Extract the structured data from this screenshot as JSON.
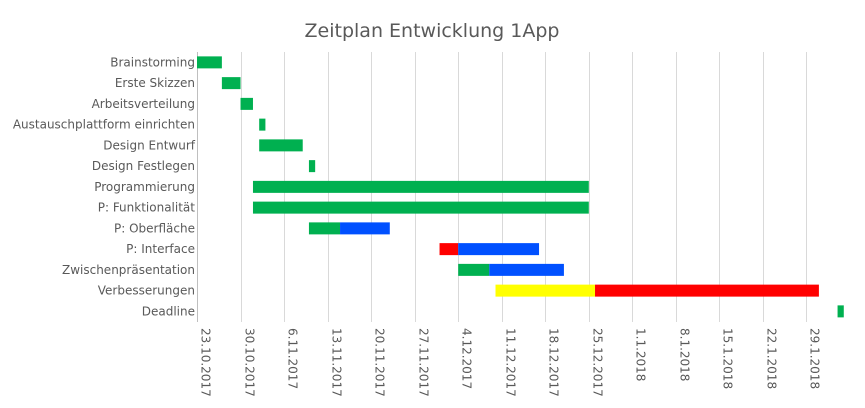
{
  "chart_data": {
    "type": "bar",
    "subtype": "gantt",
    "title": "Zeitplan Entwicklung 1App",
    "xlabel": "",
    "ylabel": "",
    "x_unit": "date",
    "xlim": [
      "2017-10-23",
      "2018-02-05"
    ],
    "x_tick_labels": [
      "23.10.2017",
      "30.10.2017",
      "6.11.2017",
      "13.11.2017",
      "20.11.2017",
      "27.11.2017",
      "4.12.2017",
      "11.12.2017",
      "18.12.2017",
      "25.12.2017",
      "1.1.2018",
      "8.1.2018",
      "15.1.2018",
      "22.1.2018",
      "29.1.2018"
    ],
    "x_ticks": [
      "2017-10-23",
      "2017-10-30",
      "2017-11-06",
      "2017-11-13",
      "2017-11-20",
      "2017-11-27",
      "2017-12-04",
      "2017-12-11",
      "2017-12-18",
      "2017-12-25",
      "2018-01-01",
      "2018-01-08",
      "2018-01-15",
      "2018-01-22",
      "2018-01-29"
    ],
    "grid": "vertical",
    "legend": "none",
    "colors": {
      "green": "#00b050",
      "blue": "#0050ff",
      "red": "#ff0000",
      "yellow": "#ffff00"
    },
    "tasks": [
      {
        "name": "Brainstorming",
        "segments": [
          {
            "start": "2017-10-23",
            "end": "2017-10-27",
            "color": "green"
          }
        ]
      },
      {
        "name": "Erste Skizzen",
        "segments": [
          {
            "start": "2017-10-27",
            "end": "2017-10-30",
            "color": "green"
          }
        ]
      },
      {
        "name": "Arbeitsverteilung",
        "segments": [
          {
            "start": "2017-10-30",
            "end": "2017-11-01",
            "color": "green"
          }
        ]
      },
      {
        "name": "Austauschplattform einrichten",
        "segments": [
          {
            "start": "2017-11-02",
            "end": "2017-11-03",
            "color": "green"
          }
        ]
      },
      {
        "name": "Design Entwurf",
        "segments": [
          {
            "start": "2017-11-02",
            "end": "2017-11-09",
            "color": "green"
          }
        ]
      },
      {
        "name": "Design Festlegen",
        "segments": [
          {
            "start": "2017-11-10",
            "end": "2017-11-11",
            "color": "green"
          }
        ]
      },
      {
        "name": "Programmierung",
        "segments": [
          {
            "start": "2017-11-01",
            "end": "2017-12-25",
            "color": "green"
          }
        ]
      },
      {
        "name": "P: Funktionalität",
        "segments": [
          {
            "start": "2017-11-01",
            "end": "2017-12-25",
            "color": "green"
          }
        ]
      },
      {
        "name": "P: Oberfläche",
        "segments": [
          {
            "start": "2017-11-10",
            "end": "2017-11-15",
            "color": "green"
          },
          {
            "start": "2017-11-15",
            "end": "2017-11-23",
            "color": "blue"
          }
        ]
      },
      {
        "name": "P: Interface",
        "segments": [
          {
            "start": "2017-12-01",
            "end": "2017-12-04",
            "color": "red"
          },
          {
            "start": "2017-12-04",
            "end": "2017-12-17",
            "color": "blue"
          }
        ]
      },
      {
        "name": "Zwischenpräsentation",
        "segments": [
          {
            "start": "2017-12-04",
            "end": "2017-12-09",
            "color": "green"
          },
          {
            "start": "2017-12-09",
            "end": "2017-12-21",
            "color": "blue"
          }
        ]
      },
      {
        "name": "Verbesserungen",
        "segments": [
          {
            "start": "2017-12-10",
            "end": "2017-12-26",
            "color": "yellow"
          },
          {
            "start": "2017-12-26",
            "end": "2018-01-31",
            "color": "red"
          }
        ]
      },
      {
        "name": "Deadline",
        "segments": [
          {
            "start": "2018-02-03",
            "end": "2018-02-04",
            "color": "green"
          }
        ]
      }
    ]
  }
}
